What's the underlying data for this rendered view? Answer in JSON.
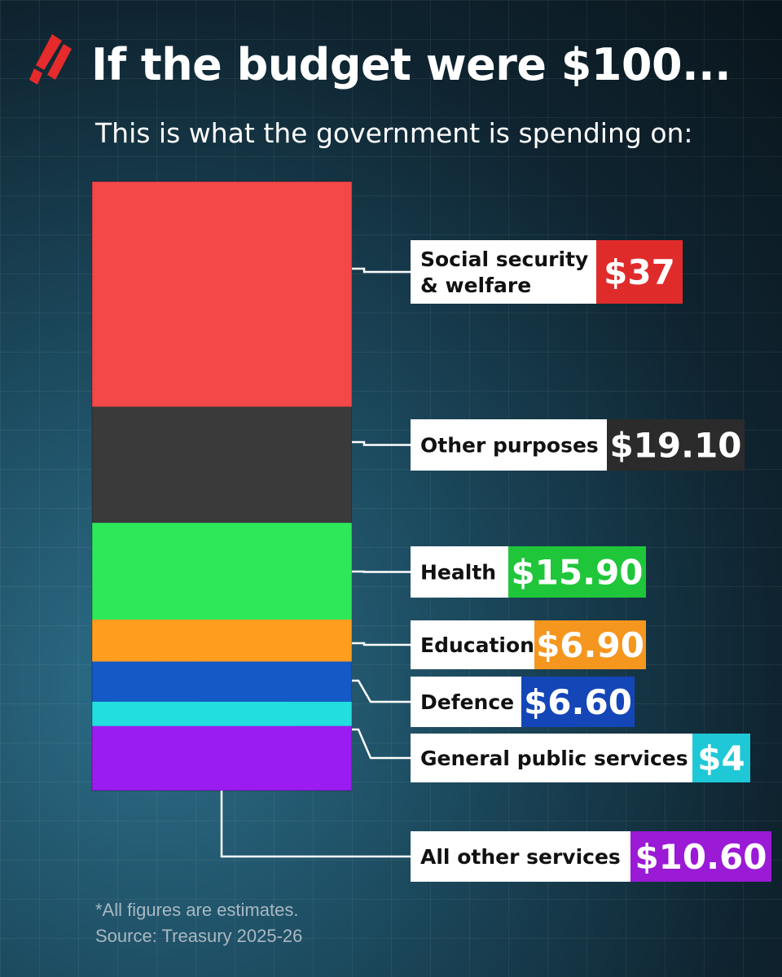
{
  "header": {
    "title": "If the budget were $100...",
    "subtitle": "This is what the government is spending on:"
  },
  "footer": {
    "note_line1": "*All figures are estimates.",
    "note_line2": "Source: Treasury 2025-26"
  },
  "colors": {
    "brand": "#e52b2b"
  },
  "chart_data": {
    "type": "bar",
    "title": "If the budget were $100...",
    "subtitle": "This is what the government is spending on:",
    "stacked": true,
    "total": 100,
    "categories": [
      "Social security & welfare",
      "Other purposes",
      "Health",
      "Education",
      "Defence",
      "General public services",
      "All other services"
    ],
    "values": [
      37,
      19.1,
      15.9,
      6.9,
      6.6,
      4,
      10.6
    ],
    "value_labels": [
      "$37",
      "$19.10",
      "$15.90",
      "$6.90",
      "$6.60",
      "$4",
      "$10.60"
    ],
    "label_lines": [
      [
        "Social security",
        "& welfare"
      ],
      [
        "Other purposes"
      ],
      [
        "Health"
      ],
      [
        "Education"
      ],
      [
        "Defence"
      ],
      [
        "General public services"
      ],
      [
        "All other services"
      ]
    ],
    "colors": [
      "#e02b2b",
      "#2b2b2b",
      "#1fc63a",
      "#f5961f",
      "#1446b8",
      "#1fc8d6",
      "#9a1ad6"
    ],
    "band_colors": [
      "#f24848",
      "#3a3a3a",
      "#2ee85a",
      "#ff9d1e",
      "#1559c6",
      "#22dede",
      "#9b1cf0"
    ],
    "unit": "$"
  }
}
